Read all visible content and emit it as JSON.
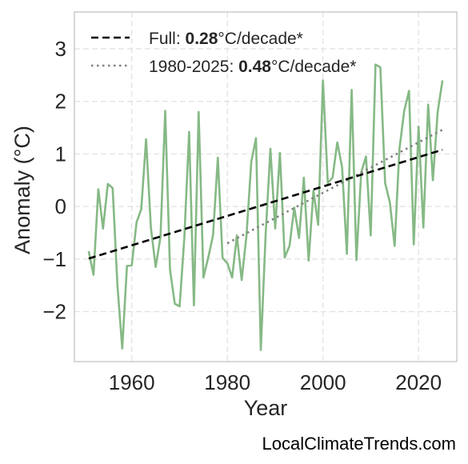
{
  "chart_data": {
    "type": "line",
    "title": "",
    "xlabel": "Year",
    "ylabel": "Anomaly (°C)",
    "xlim": [
      1948,
      2028
    ],
    "ylim": [
      -2.95,
      3.7
    ],
    "xticks": [
      1960,
      1980,
      2000,
      2020
    ],
    "yticks": [
      -2,
      -1,
      0,
      1,
      2,
      3
    ],
    "ytick_labels": [
      "−2",
      "−1",
      "0",
      "1",
      "2",
      "3"
    ],
    "grid": true,
    "legend_position": "top-left",
    "series": [
      {
        "style": "solid",
        "color": "#86b985",
        "x": [
          1951,
          1952,
          1953,
          1954,
          1955,
          1956,
          1957,
          1958,
          1959,
          1960,
          1961,
          1962,
          1963,
          1964,
          1965,
          1966,
          1967,
          1968,
          1969,
          1970,
          1971,
          1972,
          1973,
          1974,
          1975,
          1976,
          1977,
          1978,
          1979,
          1980,
          1981,
          1982,
          1983,
          1984,
          1985,
          1986,
          1987,
          1988,
          1989,
          1990,
          1991,
          1992,
          1993,
          1994,
          1995,
          1996,
          1997,
          1998,
          1999,
          2000,
          2001,
          2002,
          2003,
          2004,
          2005,
          2006,
          2007,
          2008,
          2009,
          2010,
          2011,
          2012,
          2013,
          2014,
          2015,
          2016,
          2017,
          2018,
          2019,
          2020,
          2021,
          2022,
          2023,
          2024,
          2025
        ],
        "y": [
          -0.85,
          -1.3,
          0.33,
          -0.42,
          0.43,
          0.35,
          -1.5,
          -2.7,
          -1.13,
          -1.12,
          -0.3,
          -0.05,
          1.28,
          -0.4,
          -1.15,
          -0.58,
          1.82,
          -1.2,
          -1.85,
          -1.9,
          -0.6,
          1.42,
          -1.88,
          1.8,
          -1.35,
          -0.97,
          -0.55,
          0.93,
          -0.98,
          -1.08,
          -1.35,
          -0.55,
          -1.4,
          -0.55,
          0.85,
          1.3,
          -2.73,
          -0.55,
          1.1,
          -0.42,
          1.02,
          -0.97,
          -0.75,
          -0.02,
          -0.6,
          0.55,
          -1.03,
          0.3,
          -0.35,
          2.4,
          0.45,
          0.55,
          1.22,
          0.75,
          -0.9,
          2.22,
          -1.02,
          0.65,
          0.95,
          -0.55,
          2.7,
          2.65,
          0.45,
          0.08,
          -0.75,
          1.1,
          1.82,
          2.2,
          -0.72,
          1.52,
          -0.4,
          1.94,
          0.5,
          1.8,
          2.4
        ]
      },
      {
        "name": "Full",
        "style": "dashed",
        "color": "#000000",
        "x": [
          1951,
          2025
        ],
        "y": [
          -0.99,
          1.08
        ],
        "rate_label": "0.28",
        "unit_label": "°C/decade*"
      },
      {
        "name": "1980-2025",
        "style": "dotted",
        "color": "#808080",
        "x": [
          1980,
          2025
        ],
        "y": [
          -0.7,
          1.46
        ],
        "rate_label": "0.48",
        "unit_label": "°C/decade*"
      }
    ]
  },
  "footer": {
    "credit": "LocalClimateTrends.com"
  }
}
